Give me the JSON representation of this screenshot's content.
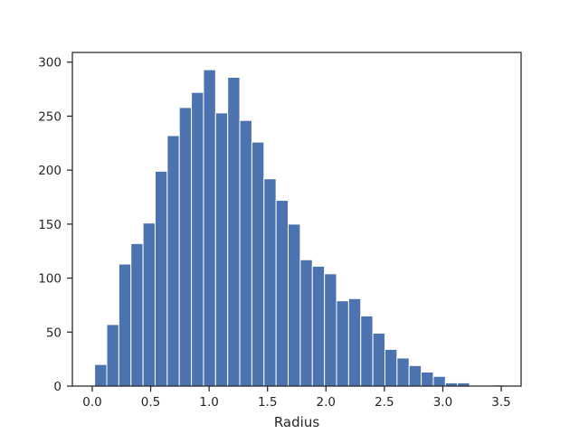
{
  "chart_data": {
    "type": "bar",
    "xlabel": "Radius",
    "ylabel": "",
    "xlim": [
      -0.17,
      3.67
    ],
    "ylim": [
      0,
      309
    ],
    "grid": false,
    "bar_color": "#4c72b0",
    "bin_width": 0.1035,
    "bins": [
      {
        "x0": 0.0207,
        "x1": 0.1242,
        "count": 20
      },
      {
        "x0": 0.1242,
        "x1": 0.2277,
        "count": 57
      },
      {
        "x0": 0.2277,
        "x1": 0.3312,
        "count": 113
      },
      {
        "x0": 0.3312,
        "x1": 0.4347,
        "count": 132
      },
      {
        "x0": 0.4347,
        "x1": 0.5382,
        "count": 151
      },
      {
        "x0": 0.5382,
        "x1": 0.6417,
        "count": 199
      },
      {
        "x0": 0.6417,
        "x1": 0.7452,
        "count": 232
      },
      {
        "x0": 0.7452,
        "x1": 0.8487,
        "count": 258
      },
      {
        "x0": 0.8487,
        "x1": 0.9522,
        "count": 272
      },
      {
        "x0": 0.9522,
        "x1": 1.0557,
        "count": 293
      },
      {
        "x0": 1.0557,
        "x1": 1.1592,
        "count": 253
      },
      {
        "x0": 1.1592,
        "x1": 1.2627,
        "count": 286
      },
      {
        "x0": 1.2627,
        "x1": 1.3662,
        "count": 246
      },
      {
        "x0": 1.3662,
        "x1": 1.4697,
        "count": 226
      },
      {
        "x0": 1.4697,
        "x1": 1.5732,
        "count": 192
      },
      {
        "x0": 1.5732,
        "x1": 1.6767,
        "count": 172
      },
      {
        "x0": 1.6767,
        "x1": 1.7802,
        "count": 150
      },
      {
        "x0": 1.7802,
        "x1": 1.8837,
        "count": 117
      },
      {
        "x0": 1.8837,
        "x1": 1.9872,
        "count": 111
      },
      {
        "x0": 1.9872,
        "x1": 2.0907,
        "count": 104
      },
      {
        "x0": 2.0907,
        "x1": 2.1942,
        "count": 79
      },
      {
        "x0": 2.1942,
        "x1": 2.2977,
        "count": 81
      },
      {
        "x0": 2.2977,
        "x1": 2.4012,
        "count": 65
      },
      {
        "x0": 2.4012,
        "x1": 2.5047,
        "count": 49
      },
      {
        "x0": 2.5047,
        "x1": 2.6082,
        "count": 34
      },
      {
        "x0": 2.6082,
        "x1": 2.7117,
        "count": 26
      },
      {
        "x0": 2.7117,
        "x1": 2.8152,
        "count": 19
      },
      {
        "x0": 2.8152,
        "x1": 2.9187,
        "count": 13
      },
      {
        "x0": 2.9187,
        "x1": 3.0222,
        "count": 9
      },
      {
        "x0": 3.0222,
        "x1": 3.1257,
        "count": 3
      },
      {
        "x0": 3.1257,
        "x1": 3.2292,
        "count": 3
      },
      {
        "x0": 3.2292,
        "x1": 3.3327,
        "count": 0
      },
      {
        "x0": 3.3327,
        "x1": 3.4362,
        "count": 0
      },
      {
        "x0": 3.4362,
        "x1": 3.5397,
        "count": 1
      }
    ],
    "x_ticks": [
      {
        "value": 0.0,
        "label": "0.0"
      },
      {
        "value": 0.5,
        "label": "0.5"
      },
      {
        "value": 1.0,
        "label": "1.0"
      },
      {
        "value": 1.5,
        "label": "1.5"
      },
      {
        "value": 2.0,
        "label": "2.0"
      },
      {
        "value": 2.5,
        "label": "2.5"
      },
      {
        "value": 3.0,
        "label": "3.0"
      },
      {
        "value": 3.5,
        "label": "3.5"
      }
    ],
    "y_ticks": [
      {
        "value": 0,
        "label": "0"
      },
      {
        "value": 50,
        "label": "50"
      },
      {
        "value": 100,
        "label": "100"
      },
      {
        "value": 150,
        "label": "150"
      },
      {
        "value": 200,
        "label": "200"
      },
      {
        "value": 250,
        "label": "250"
      },
      {
        "value": 300,
        "label": "300"
      }
    ]
  }
}
